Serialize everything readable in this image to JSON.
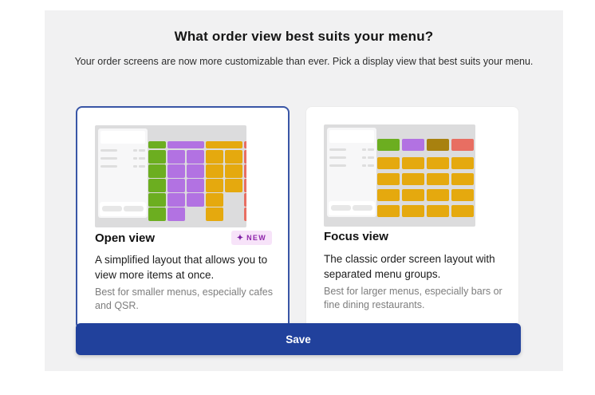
{
  "dialog": {
    "title": "What order view best suits your menu?",
    "subtitle": "Your order screens are now more customizable than ever. Pick a display view that best suits your menu.",
    "save_label": "Save"
  },
  "palette": {
    "green": "#6cae20",
    "purple": "#b272e2",
    "yellow": "#e5a90e",
    "red": "#e86e62",
    "olive": "#a8810f",
    "selected_border": "#3956a6",
    "save_button": "#21419c",
    "badge_bg": "#f7e3f9",
    "badge_text": "#8e24aa"
  },
  "cards": [
    {
      "id": "open-view",
      "selected": true,
      "title": "Open view",
      "badge_label": "NEW",
      "badge_icon": "sparkle-icon",
      "description": "A simplified layout that allows you to view more items at once.",
      "subtext": "Best for smaller menus, especially cafes and QSR.",
      "illustration": {
        "type": "open",
        "groups": [
          {
            "color": "green",
            "tiles": [
              [
                1
              ],
              [
                1
              ],
              [
                1
              ],
              [
                1
              ],
              [
                1
              ]
            ]
          },
          {
            "color": "purple",
            "tiles": [
              [
                1,
                1
              ],
              [
                1,
                1
              ],
              [
                1,
                1
              ],
              [
                1,
                1
              ],
              [
                1,
                0
              ]
            ]
          },
          {
            "color": "yellow",
            "tiles": [
              [
                1,
                1
              ],
              [
                1,
                1
              ],
              [
                1,
                1
              ],
              [
                1,
                0
              ],
              [
                1,
                0
              ]
            ]
          },
          {
            "color": "red",
            "tiles": [
              [
                1
              ],
              [
                1
              ],
              [
                1
              ],
              [
                1
              ],
              [
                1
              ]
            ]
          }
        ]
      }
    },
    {
      "id": "focus-view",
      "selected": false,
      "title": "Focus view",
      "description": "The classic order screen layout with separated menu groups.",
      "subtext": "Best for larger menus, especially bars or fine dining restaurants.",
      "illustration": {
        "type": "focus",
        "tabs": [
          "green",
          "purple",
          "olive",
          "red"
        ],
        "grid": {
          "rows": 4,
          "cols": 4,
          "color": "yellow"
        }
      }
    }
  ]
}
